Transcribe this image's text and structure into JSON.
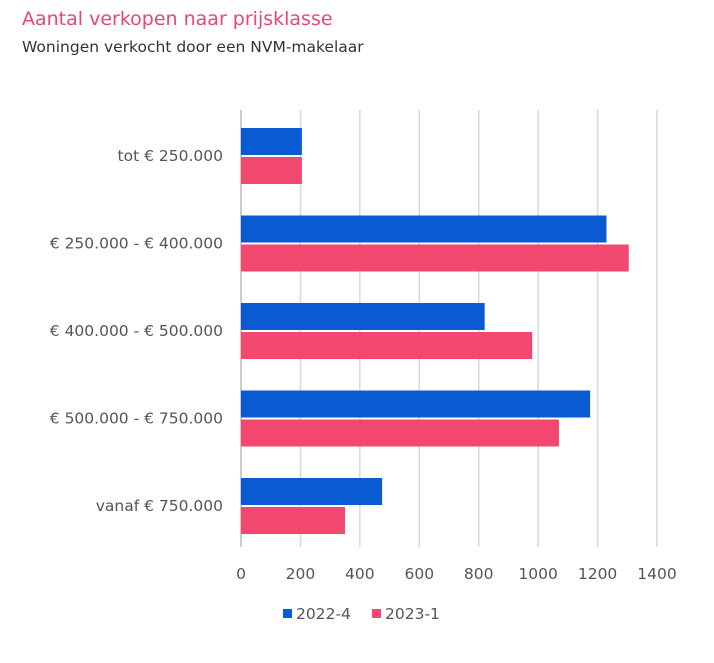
{
  "chart_data": {
    "type": "bar",
    "orientation": "horizontal",
    "title": "Aantal verkopen naar prijsklasse",
    "subtitle": "Woningen verkocht door een NVM-makelaar",
    "categories": [
      "tot € 250.000",
      "€ 250.000 - € 400.000",
      "€ 400.000 - € 500.000",
      "€ 500.000 - € 750.000",
      "vanaf € 750.000"
    ],
    "series": [
      {
        "name": "2022-4",
        "color": "#0a5ad1",
        "values": [
          205,
          1230,
          820,
          1175,
          475
        ]
      },
      {
        "name": "2023-1",
        "color": "#f2476f",
        "values": [
          205,
          1305,
          980,
          1070,
          350
        ]
      }
    ],
    "xlim": [
      0,
      1400
    ],
    "xticks": [
      0,
      200,
      400,
      600,
      800,
      1000,
      1200,
      1400
    ],
    "xticks_labels": [
      "0",
      "200",
      "400",
      "600",
      "800",
      "1000",
      "1200",
      "1400"
    ],
    "grid": true,
    "legend": "bottom"
  }
}
